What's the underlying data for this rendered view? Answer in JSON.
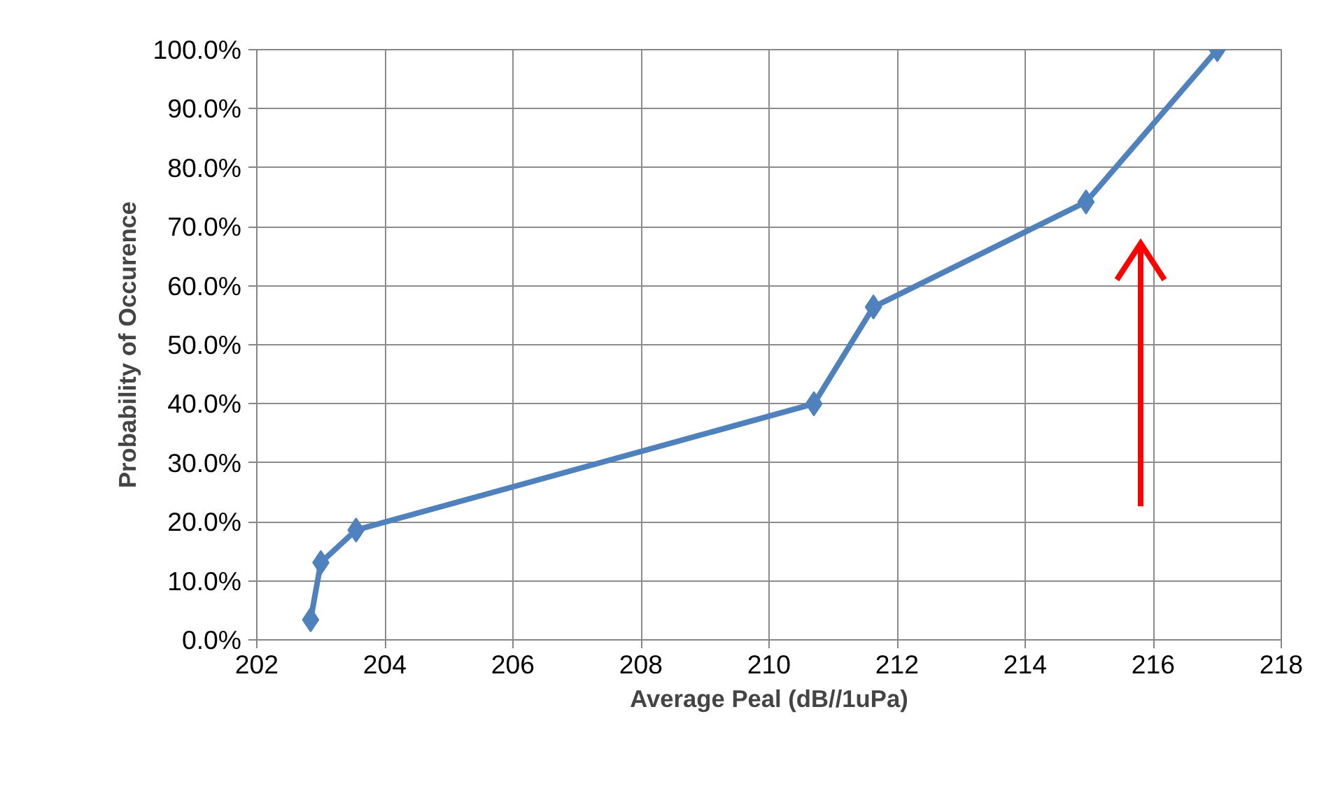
{
  "chart_data": {
    "type": "line",
    "xlabel": "Average Peal (dB//1uPa)",
    "ylabel": "Probability of Occurence",
    "x": [
      202.84,
      203.0,
      203.55,
      210.7,
      211.63,
      214.95,
      217.0
    ],
    "series": [
      {
        "color": "#4f81bd",
        "values": [
          3.4,
          13.1,
          18.6,
          40.0,
          56.4,
          74.2,
          100.0
        ]
      }
    ],
    "xlim": [
      202,
      218
    ],
    "xticks": [
      202,
      204,
      206,
      208,
      210,
      212,
      214,
      216,
      218
    ],
    "ylim": [
      0,
      100
    ],
    "yticks": [
      {
        "value": 0,
        "label": "0.0%"
      },
      {
        "value": 10,
        "label": "10.0%"
      },
      {
        "value": 20,
        "label": "20.0%"
      },
      {
        "value": 30,
        "label": "30.0%"
      },
      {
        "value": 40,
        "label": "40.0%"
      },
      {
        "value": 50,
        "label": "50.0%"
      },
      {
        "value": 60,
        "label": "60.0%"
      },
      {
        "value": 70,
        "label": "70.0%"
      },
      {
        "value": 80,
        "label": "80.0%"
      },
      {
        "value": 90,
        "label": "90.0%"
      },
      {
        "value": 100,
        "label": "100.0%"
      }
    ],
    "grid": true,
    "marker": "diamond",
    "line_style": "solid"
  }
}
